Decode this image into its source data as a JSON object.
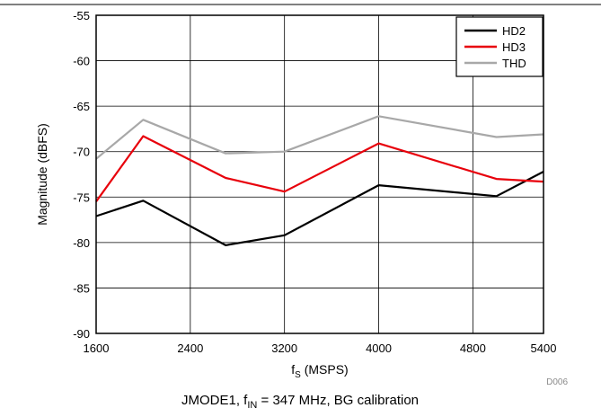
{
  "chart_data": {
    "type": "line",
    "xlabel": {
      "main": "f",
      "sub": "S",
      "rest": " (MSPS)"
    },
    "ylabel": "Magnitude (dBFS)",
    "xlim": [
      1600,
      5400
    ],
    "ylim": [
      -90,
      -55
    ],
    "xticks": [
      1600,
      2400,
      3200,
      4000,
      4800,
      5400
    ],
    "yticks": [
      -55,
      -60,
      -65,
      -70,
      -75,
      -80,
      -85,
      -90
    ],
    "grid": true,
    "legend_position": "top-right",
    "figure_id": "D006",
    "caption": {
      "prefix": "JMODE1, f",
      "sub": "IN",
      "suffix": " = 347 MHz, BG calibration"
    },
    "series": [
      {
        "name": "HD2",
        "color": "#000000",
        "x": [
          1600,
          2000,
          2700,
          3200,
          4000,
          5000,
          5400
        ],
        "y": [
          -77.1,
          -75.4,
          -80.3,
          -79.2,
          -73.7,
          -74.9,
          -72.2
        ]
      },
      {
        "name": "HD3",
        "color": "#e8000b",
        "x": [
          1600,
          2000,
          2700,
          3200,
          4000,
          5000,
          5400
        ],
        "y": [
          -75.5,
          -68.3,
          -72.9,
          -74.4,
          -69.1,
          -73.0,
          -73.3
        ]
      },
      {
        "name": "THD",
        "color": "#a8a8a8",
        "x": [
          1600,
          2000,
          2700,
          3200,
          4000,
          5000,
          5400
        ],
        "y": [
          -70.8,
          -66.5,
          -70.2,
          -70.0,
          -66.1,
          -68.4,
          -68.1
        ]
      }
    ]
  }
}
